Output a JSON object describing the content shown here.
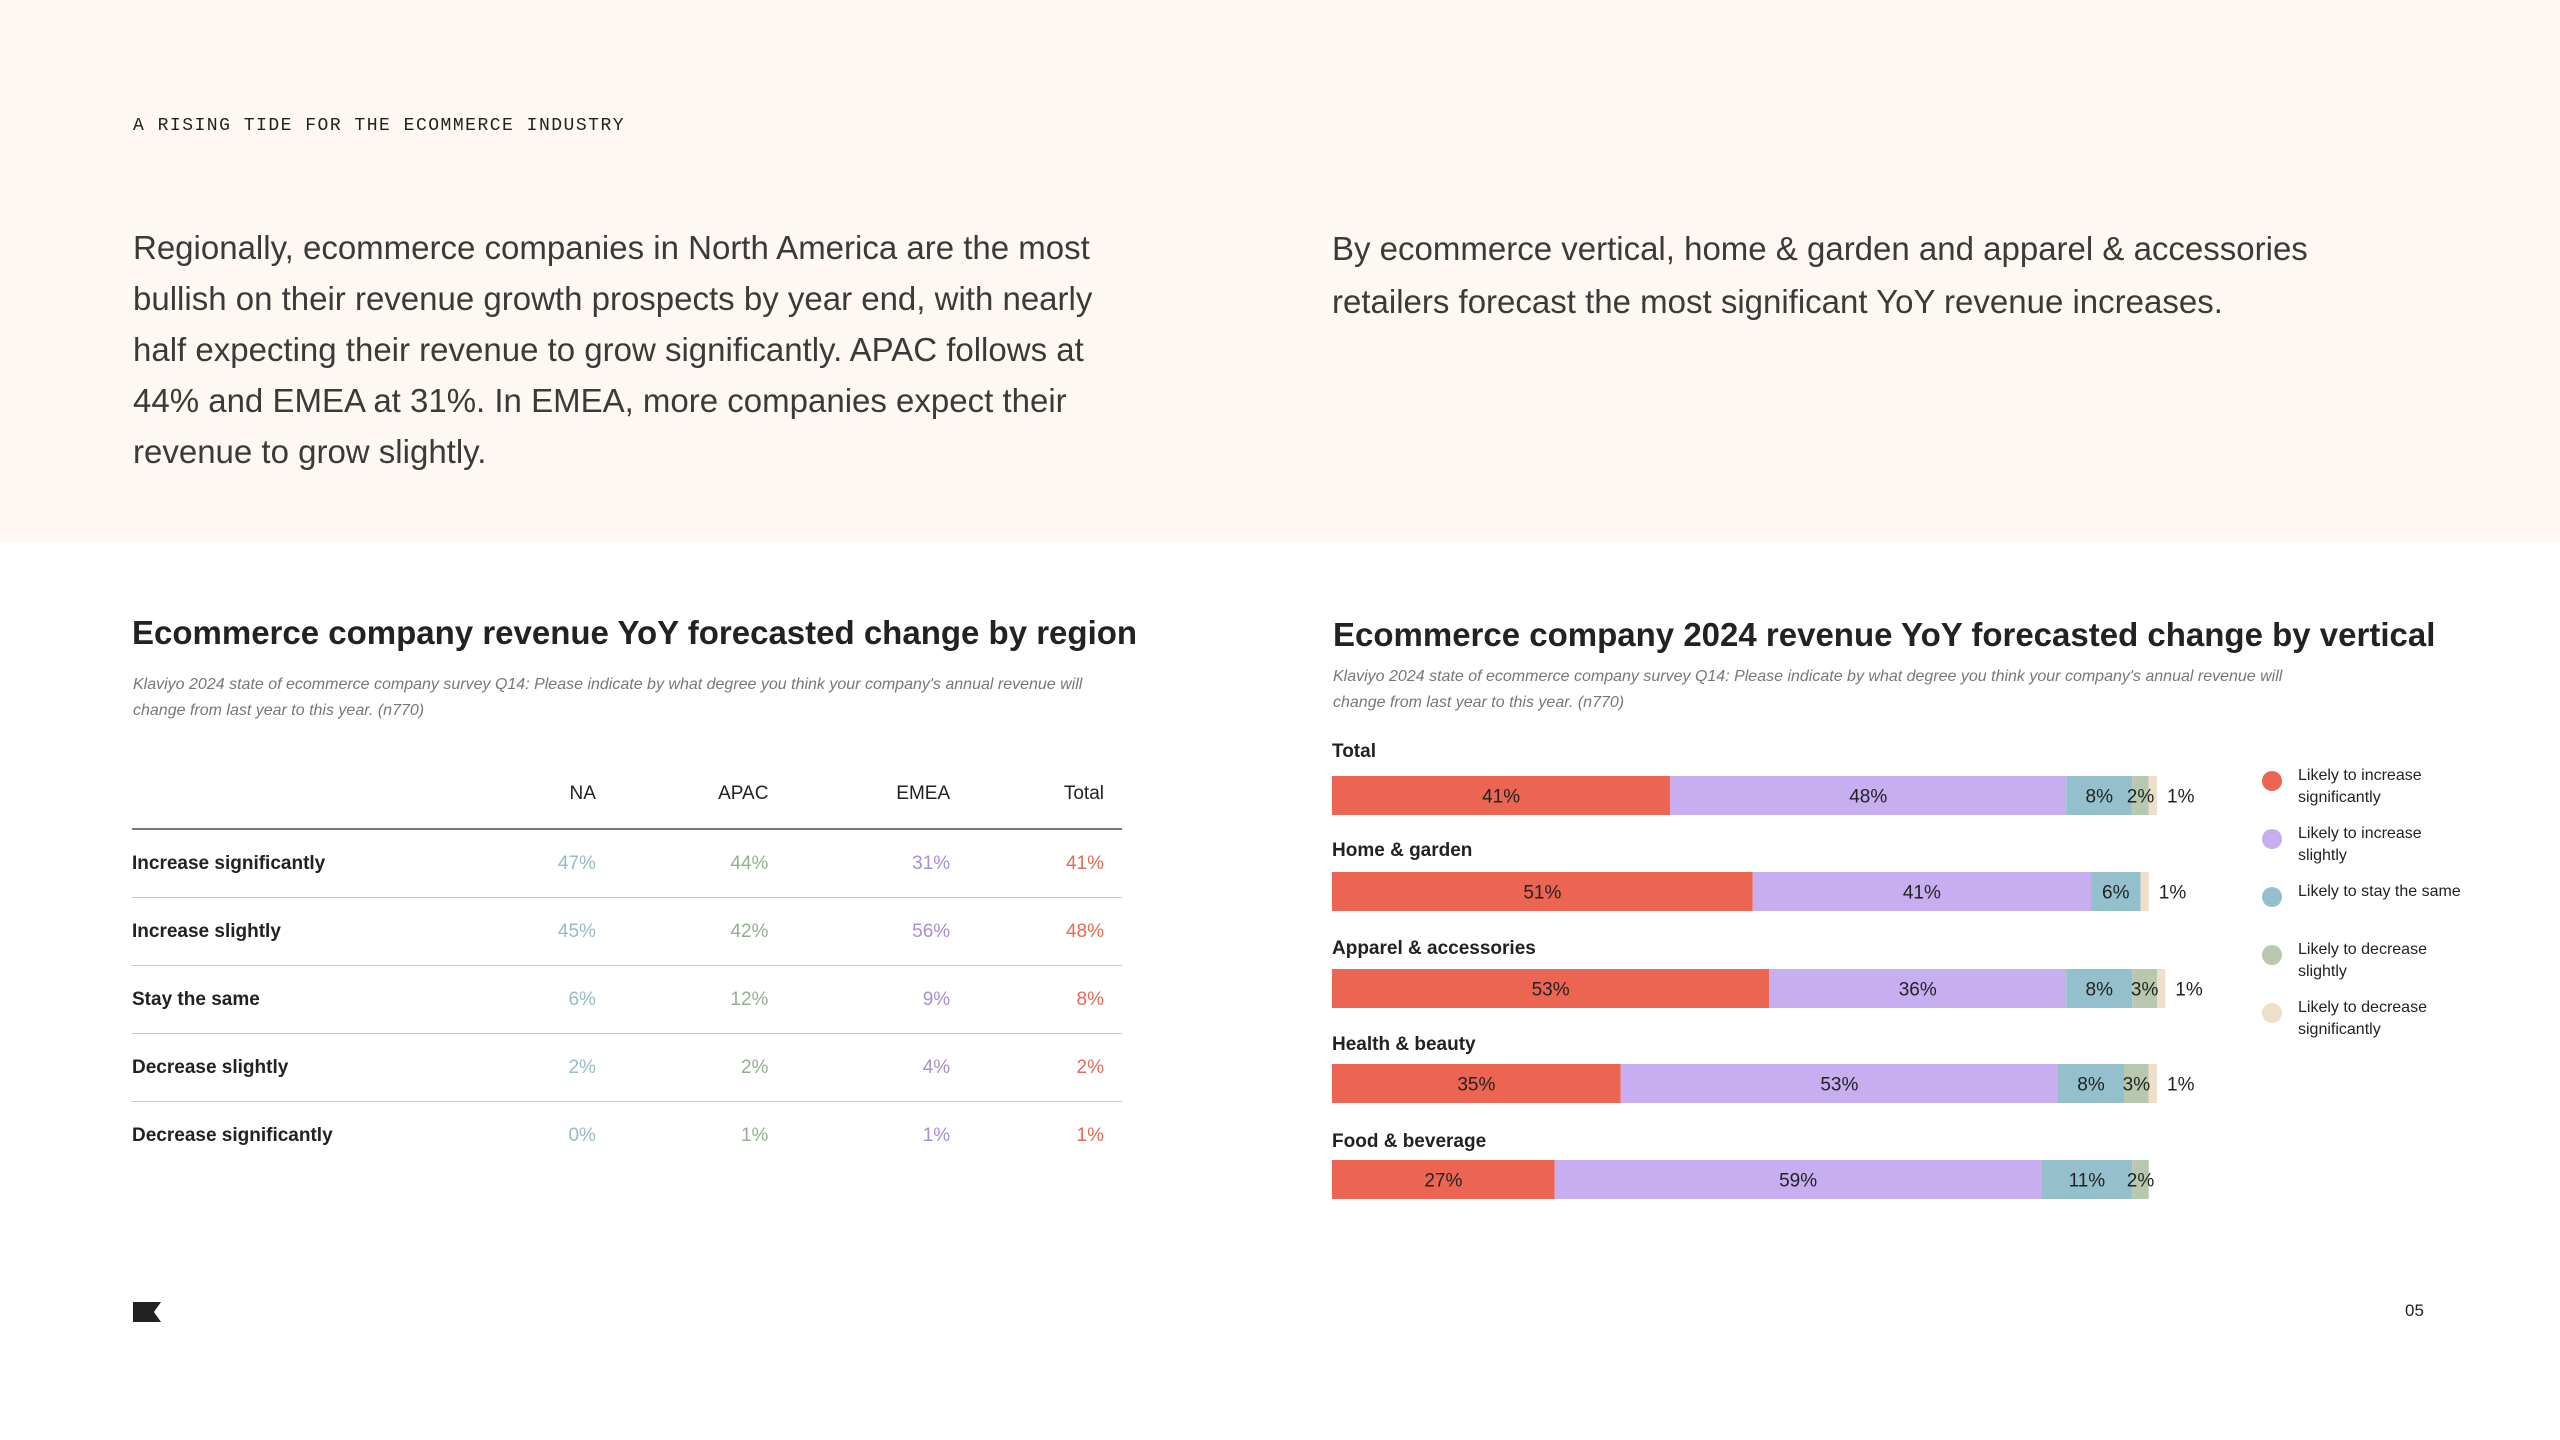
{
  "header": {
    "eyebrow": "A RISING TIDE FOR THE ECOMMERCE INDUSTRY"
  },
  "intro": {
    "left": "Regionally, ecommerce companies in North America are the most bullish on their revenue growth prospects by year end, with nearly half expecting their revenue to grow significantly. APAC follows at 44% and EMEA at 31%. In EMEA, more companies expect their revenue to grow slightly.",
    "right": "By ecommerce vertical, home & garden and apparel & accessories retailers forecast the most significant YoY revenue increases."
  },
  "region_table": {
    "title": "Ecommerce company revenue YoY forecasted change by region",
    "note": "Klaviyo 2024 state of ecommerce company survey Q14: Please indicate by what degree you think your company's annual revenue will change from last year to this year. (n770)",
    "columns": [
      "",
      "NA",
      "APAC",
      "EMEA",
      "Total"
    ],
    "column_colors": [
      "#222222",
      "#95bcc6",
      "#95ae92",
      "#a98ed2",
      "#e06b57"
    ],
    "rows": [
      {
        "label": "Increase significantly",
        "values": [
          "47%",
          "44%",
          "31%",
          "41%"
        ]
      },
      {
        "label": "Increase slightly",
        "values": [
          "45%",
          "42%",
          "56%",
          "48%"
        ]
      },
      {
        "label": "Stay the same",
        "values": [
          "6%",
          "12%",
          "9%",
          "8%"
        ]
      },
      {
        "label": "Decrease slightly",
        "values": [
          "2%",
          "2%",
          "4%",
          "2%"
        ]
      },
      {
        "label": "Decrease significantly",
        "values": [
          "0%",
          "1%",
          "1%",
          "1%"
        ]
      }
    ]
  },
  "vertical_chart": {
    "title": "Ecommerce company 2024 revenue YoY forecasted change by vertical",
    "note": "Klaviyo 2024 state of ecommerce company survey Q14: Please indicate by what degree you think your company's annual revenue will change from last year to this year. (n770)"
  },
  "chart_data": {
    "type": "bar",
    "orientation": "horizontal",
    "stacked": true,
    "title": "Ecommerce company 2024 revenue YoY forecasted change by vertical",
    "categories": [
      "Total",
      "Home & garden",
      "Apparel & accessories",
      "Health & beauty",
      "Food & beverage"
    ],
    "series": [
      {
        "name": "Likely to increase significantly",
        "color": "#ec6553",
        "values": [
          41,
          51,
          53,
          35,
          27
        ]
      },
      {
        "name": "Likely to increase slightly",
        "color": "#c7aef0",
        "values": [
          48,
          41,
          36,
          53,
          59
        ]
      },
      {
        "name": "Likely to stay the same",
        "color": "#93c0cc",
        "values": [
          8,
          6,
          8,
          8,
          11
        ]
      },
      {
        "name": "Likely to decrease slightly",
        "color": "#b8c8ae",
        "values": [
          2,
          0,
          3,
          3,
          2
        ]
      },
      {
        "name": "Likely to decrease significantly",
        "color": "#eedfc8",
        "values": [
          1,
          1,
          1,
          1,
          0
        ]
      }
    ],
    "legend_position": "right",
    "grid": false
  },
  "footer": {
    "page_number": "05"
  }
}
